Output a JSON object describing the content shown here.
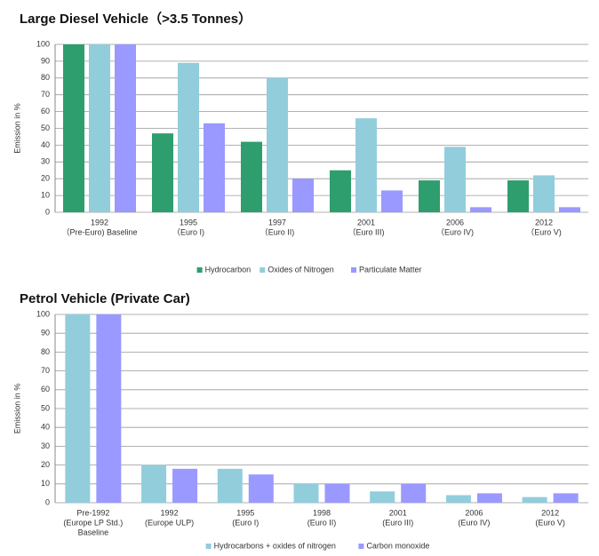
{
  "chart_data": [
    {
      "type": "bar",
      "title": "Large Diesel Vehicle（>3.5 Tonnes）",
      "y_label": "Emission in %",
      "categories": [
        [
          "1992",
          "（Pre-Euro)   Baseline"
        ],
        [
          "1995",
          "（Euro I)"
        ],
        [
          "1997",
          "（Euro II)"
        ],
        [
          "2001",
          "（Euro III)"
        ],
        [
          "2006",
          "（Euro IV)"
        ],
        [
          "2012",
          "（Euro V)"
        ]
      ],
      "series": [
        {
          "name": "Hydrocarbon",
          "color": "#2e9e6e",
          "values": [
            100,
            47,
            42,
            25,
            19,
            19
          ]
        },
        {
          "name": "Oxides of Nitrogen",
          "color": "#92cddc",
          "values": [
            100,
            89,
            80,
            56,
            39,
            22
          ]
        },
        {
          "name": "Particulate  Matter",
          "color": "#9999ff",
          "values": [
            100,
            53,
            20,
            13,
            3,
            3
          ]
        }
      ],
      "ylim": [
        0,
        100
      ],
      "yticks": [
        0,
        10,
        20,
        30,
        40,
        50,
        60,
        70,
        80,
        90,
        100
      ],
      "grid": true,
      "legend": "bottom"
    },
    {
      "type": "bar",
      "title": "Petrol Vehicle (Private Car)",
      "y_label": "Emission in %",
      "categories": [
        [
          "Pre-1992",
          "(Europe LP Std.)",
          "Baseline"
        ],
        [
          "1992",
          "(Europe ULP)"
        ],
        [
          "1995",
          "(Euro I)"
        ],
        [
          "1998",
          "(Euro II)"
        ],
        [
          "2001",
          "(Euro III)"
        ],
        [
          "2006",
          "(Euro IV)"
        ],
        [
          "2012",
          "(Euro V)"
        ]
      ],
      "series": [
        {
          "name": "Hydrocarbons + oxides of nitrogen",
          "color": "#92cddc",
          "values": [
            100,
            20,
            18,
            10,
            6,
            4,
            3
          ]
        },
        {
          "name": "Carbon monoxide",
          "color": "#9999ff",
          "values": [
            100,
            18,
            15,
            10,
            10,
            5,
            5
          ]
        }
      ],
      "ylim": [
        0,
        100
      ],
      "yticks": [
        0,
        10,
        20,
        30,
        40,
        50,
        60,
        70,
        80,
        90,
        100
      ],
      "grid": true,
      "legend": "bottom"
    }
  ]
}
